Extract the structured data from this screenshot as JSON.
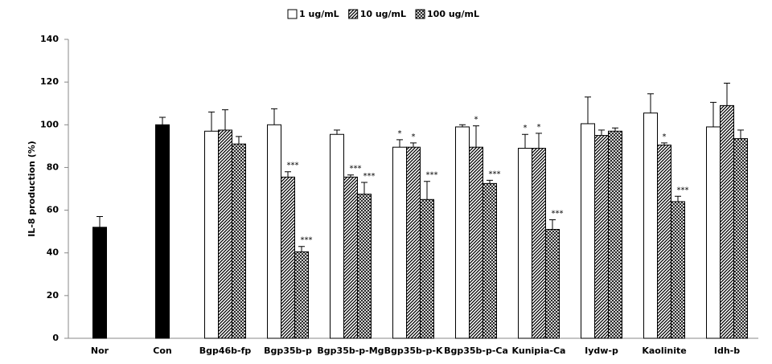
{
  "chart_data": {
    "type": "bar",
    "y_label": "IL-8 production (%)",
    "categories": [
      "Nor",
      "Con",
      "Bgp46b-fp",
      "Bgp35b-p",
      "Bgp35b-p-Mg",
      "Bgp35b-p-K",
      "Bgp35b-p-Ca",
      "Kunipia-Ca",
      "Iydw-p",
      "Kaolinite",
      "Idh-b"
    ],
    "series": [
      {
        "color": "#000000",
        "pattern": "solid",
        "values": [
          52,
          100,
          null,
          null,
          null,
          null,
          null,
          null,
          null,
          null,
          null
        ],
        "errors": [
          5,
          3.5,
          null,
          null,
          null,
          null,
          null,
          null,
          null,
          null,
          null
        ]
      },
      {
        "name": "1 ug/mL",
        "color": "#ffffff",
        "pattern": "solid",
        "values": [
          null,
          null,
          97,
          100,
          95.5,
          89.5,
          99,
          89,
          100.5,
          105.5,
          99
        ],
        "errors": [
          null,
          null,
          9,
          7.5,
          2,
          3.5,
          1,
          6.5,
          12.5,
          9,
          11.5
        ],
        "annotations": [
          null,
          null,
          null,
          null,
          null,
          "*",
          null,
          "*",
          null,
          null,
          null
        ]
      },
      {
        "name": "10 ug/mL",
        "color": "#000000",
        "pattern": "diagonal",
        "values": [
          null,
          null,
          97.5,
          75.5,
          75.5,
          89.5,
          89.5,
          89,
          95,
          90.5,
          109
        ],
        "errors": [
          null,
          null,
          9.5,
          2.5,
          1,
          2,
          10,
          7,
          2.5,
          1,
          10.5
        ],
        "annotations": [
          null,
          null,
          null,
          "***",
          "***",
          "*",
          "*",
          "*",
          null,
          "*",
          null
        ]
      },
      {
        "name": "100 ug/mL",
        "color": "#000000",
        "pattern": "crosshatch",
        "values": [
          null,
          null,
          91,
          40.5,
          67.5,
          65,
          72.5,
          51,
          97,
          64,
          93.5
        ],
        "errors": [
          null,
          null,
          3.5,
          2.5,
          5.5,
          8.5,
          1.5,
          4.5,
          1.5,
          2.5,
          4
        ],
        "annotations": [
          null,
          null,
          null,
          "***",
          "***",
          "***",
          "***",
          "***",
          null,
          "***",
          null
        ]
      }
    ],
    "ylim": [
      0,
      140
    ],
    "yticks": [
      0,
      20,
      40,
      60,
      80,
      100,
      120,
      140
    ],
    "grid": false,
    "legend": "top"
  }
}
